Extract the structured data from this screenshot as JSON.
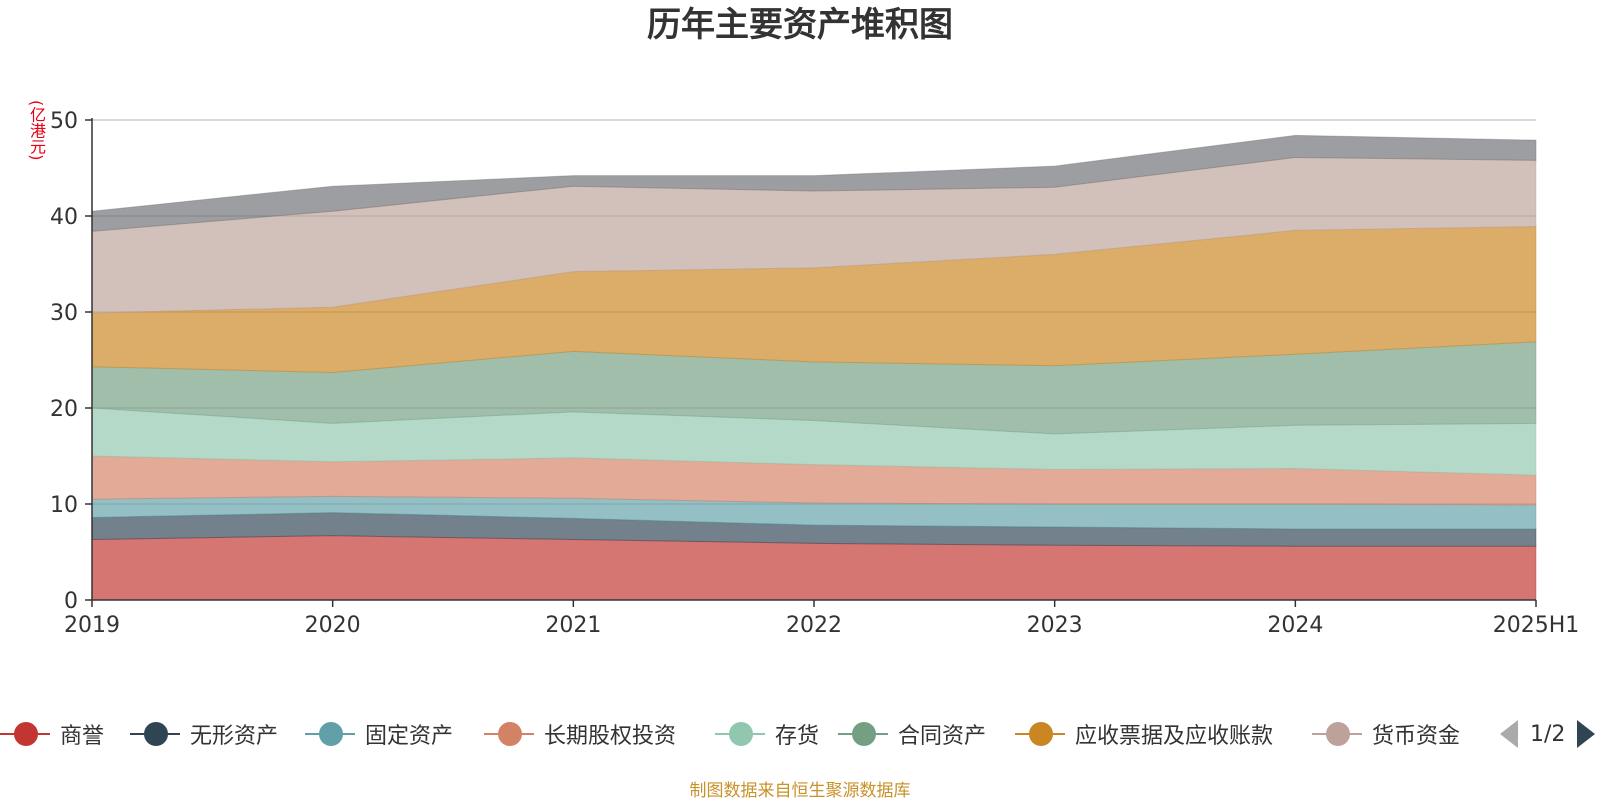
{
  "chart_data": {
    "type": "area",
    "title": "历年主要资产堆积图",
    "unit_label": "(亿港元)",
    "stacked": true,
    "x": [
      "2019",
      "2020",
      "2021",
      "2022",
      "2023",
      "2024",
      "2025H1"
    ],
    "ylim": [
      0,
      50
    ],
    "yticks": [
      0,
      10,
      20,
      30,
      40,
      50
    ],
    "grid": true,
    "legend_position": "bottom",
    "series": [
      {
        "name": "商誉",
        "color": "#c23531",
        "values": [
          6.3,
          6.7,
          6.3,
          5.9,
          5.7,
          5.6,
          5.6
        ]
      },
      {
        "name": "无形资产",
        "color": "#2f4554",
        "values": [
          2.3,
          2.4,
          2.2,
          1.9,
          1.9,
          1.8,
          1.8
        ]
      },
      {
        "name": "固定资产",
        "color": "#61a0a8",
        "values": [
          1.9,
          1.7,
          2.1,
          2.3,
          2.4,
          2.6,
          2.5
        ]
      },
      {
        "name": "长期股权投资",
        "color": "#d48265",
        "values": [
          4.5,
          3.6,
          4.2,
          4.0,
          3.6,
          3.7,
          3.1
        ]
      },
      {
        "name": "存货",
        "color": "#91c7ae",
        "values": [
          5.0,
          4.0,
          4.8,
          4.6,
          3.7,
          4.5,
          5.4
        ]
      },
      {
        "name": "合同资产",
        "color": "#749f83",
        "values": [
          4.3,
          5.3,
          6.3,
          6.1,
          7.1,
          7.4,
          8.5
        ]
      },
      {
        "name": "应收票据及应收账款",
        "color": "#ca8622",
        "values": [
          5.6,
          6.8,
          8.3,
          9.8,
          11.6,
          12.9,
          12.0
        ]
      },
      {
        "name": "货币资金",
        "color": "#bda29a",
        "values": [
          8.5,
          10.0,
          8.9,
          8.0,
          7.0,
          7.6,
          6.9
        ]
      },
      {
        "name": "",
        "color": "#6e7074",
        "values": [
          2.1,
          2.6,
          1.1,
          1.6,
          2.2,
          2.3,
          2.1
        ]
      }
    ]
  },
  "legend": {
    "items": [
      "商誉",
      "无形资产",
      "固定资产",
      "长期股权投资",
      "存货",
      "合同资产",
      "应收票据及应收账款",
      "货币资金"
    ],
    "pager_text": "1/2"
  },
  "footer": {
    "source_note": "制图数据来自恒生聚源数据库"
  }
}
